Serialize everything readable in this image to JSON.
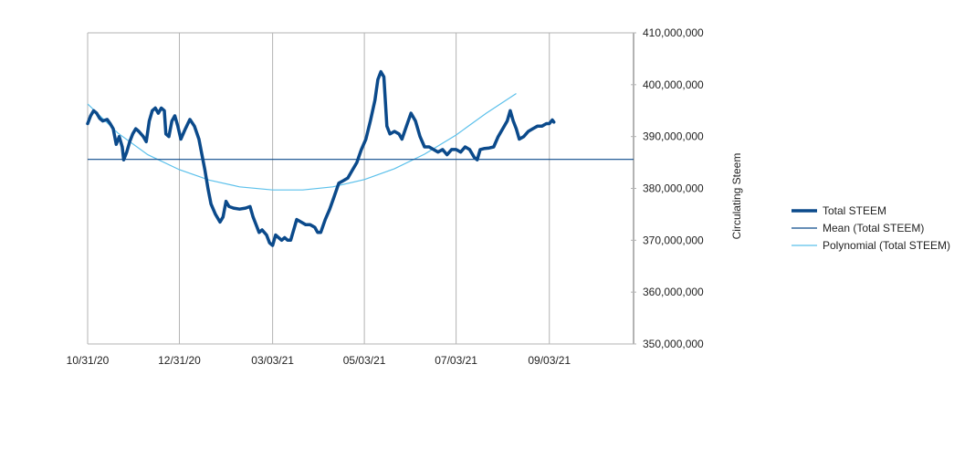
{
  "chart_data": {
    "type": "line",
    "title": "",
    "xlabel": "",
    "ylabel": "Circulating Steem",
    "ylim": [
      350000000,
      410000000
    ],
    "y_ticks": [
      350000000,
      360000000,
      370000000,
      380000000,
      390000000,
      400000000,
      410000000
    ],
    "y_tick_labels": [
      "350,000,000",
      "360,000,000",
      "370,000,000",
      "380,000,000",
      "390,000,000",
      "400,000,000",
      "410,000,000"
    ],
    "xlim": [
      "2020-10-31",
      "2021-10-29"
    ],
    "x_ticks": [
      "2020-10-31",
      "2020-12-31",
      "2021-03-03",
      "2021-05-03",
      "2021-07-03",
      "2021-09-03"
    ],
    "x_tick_labels": [
      "10/31/20",
      "12/31/20",
      "03/03/21",
      "05/03/21",
      "07/03/21",
      "09/03/21"
    ],
    "grid": "vertical",
    "legend_position": "right",
    "series": [
      {
        "name": "Total STEEM",
        "style": "thick-line",
        "color": "#0b4a8b",
        "points": [
          [
            "2020-10-31",
            392500000
          ],
          [
            "2020-11-02",
            394000000
          ],
          [
            "2020-11-04",
            395000000
          ],
          [
            "2020-11-06",
            394500000
          ],
          [
            "2020-11-08",
            393500000
          ],
          [
            "2020-11-10",
            393000000
          ],
          [
            "2020-11-13",
            393300000
          ],
          [
            "2020-11-15",
            392500000
          ],
          [
            "2020-11-17",
            391500000
          ],
          [
            "2020-11-19",
            388500000
          ],
          [
            "2020-11-21",
            390000000
          ],
          [
            "2020-11-23",
            388000000
          ],
          [
            "2020-11-24",
            385500000
          ],
          [
            "2020-11-26",
            387000000
          ],
          [
            "2020-11-28",
            389000000
          ],
          [
            "2020-11-30",
            390500000
          ],
          [
            "2020-12-02",
            391500000
          ],
          [
            "2020-12-04",
            391000000
          ],
          [
            "2020-12-07",
            390000000
          ],
          [
            "2020-12-09",
            389000000
          ],
          [
            "2020-12-11",
            393000000
          ],
          [
            "2020-12-13",
            395000000
          ],
          [
            "2020-12-15",
            395500000
          ],
          [
            "2020-12-17",
            394500000
          ],
          [
            "2020-12-19",
            395500000
          ],
          [
            "2020-12-21",
            395000000
          ],
          [
            "2020-12-22",
            390500000
          ],
          [
            "2020-12-24",
            390000000
          ],
          [
            "2020-12-26",
            393000000
          ],
          [
            "2020-12-28",
            394000000
          ],
          [
            "2020-12-30",
            392000000
          ],
          [
            "2021-01-01",
            389500000
          ],
          [
            "2021-01-04",
            391500000
          ],
          [
            "2021-01-07",
            393300000
          ],
          [
            "2021-01-10",
            392000000
          ],
          [
            "2021-01-13",
            389500000
          ],
          [
            "2021-01-15",
            386500000
          ],
          [
            "2021-01-17",
            383500000
          ],
          [
            "2021-01-19",
            380000000
          ],
          [
            "2021-01-21",
            377000000
          ],
          [
            "2021-01-24",
            375000000
          ],
          [
            "2021-01-27",
            373500000
          ],
          [
            "2021-01-29",
            374500000
          ],
          [
            "2021-01-31",
            377500000
          ],
          [
            "2021-02-02",
            376500000
          ],
          [
            "2021-02-05",
            376200000
          ],
          [
            "2021-02-09",
            376000000
          ],
          [
            "2021-02-13",
            376200000
          ],
          [
            "2021-02-16",
            376500000
          ],
          [
            "2021-02-18",
            374500000
          ],
          [
            "2021-02-20",
            373000000
          ],
          [
            "2021-02-22",
            371500000
          ],
          [
            "2021-02-24",
            372000000
          ],
          [
            "2021-02-27",
            371000000
          ],
          [
            "2021-03-01",
            369500000
          ],
          [
            "2021-03-03",
            369000000
          ],
          [
            "2021-03-05",
            371000000
          ],
          [
            "2021-03-07",
            370500000
          ],
          [
            "2021-03-09",
            370000000
          ],
          [
            "2021-03-11",
            370500000
          ],
          [
            "2021-03-13",
            370000000
          ],
          [
            "2021-03-15",
            370000000
          ],
          [
            "2021-03-17",
            372000000
          ],
          [
            "2021-03-19",
            374000000
          ],
          [
            "2021-03-22",
            373500000
          ],
          [
            "2021-03-25",
            373000000
          ],
          [
            "2021-03-28",
            373000000
          ],
          [
            "2021-03-31",
            372500000
          ],
          [
            "2021-04-02",
            371500000
          ],
          [
            "2021-04-04",
            371500000
          ],
          [
            "2021-04-07",
            374000000
          ],
          [
            "2021-04-10",
            376000000
          ],
          [
            "2021-04-13",
            378500000
          ],
          [
            "2021-04-16",
            381000000
          ],
          [
            "2021-04-19",
            381500000
          ],
          [
            "2021-04-22",
            382000000
          ],
          [
            "2021-04-25",
            383500000
          ],
          [
            "2021-04-28",
            385000000
          ],
          [
            "2021-05-01",
            387500000
          ],
          [
            "2021-05-04",
            389500000
          ],
          [
            "2021-05-07",
            393000000
          ],
          [
            "2021-05-10",
            397000000
          ],
          [
            "2021-05-12",
            401000000
          ],
          [
            "2021-05-14",
            402500000
          ],
          [
            "2021-05-16",
            401500000
          ],
          [
            "2021-05-18",
            392000000
          ],
          [
            "2021-05-20",
            390500000
          ],
          [
            "2021-05-23",
            391000000
          ],
          [
            "2021-05-26",
            390500000
          ],
          [
            "2021-05-28",
            389500000
          ],
          [
            "2021-05-31",
            392000000
          ],
          [
            "2021-06-03",
            394500000
          ],
          [
            "2021-06-06",
            393000000
          ],
          [
            "2021-06-09",
            390000000
          ],
          [
            "2021-06-12",
            388000000
          ],
          [
            "2021-06-15",
            388000000
          ],
          [
            "2021-06-18",
            387500000
          ],
          [
            "2021-06-21",
            387000000
          ],
          [
            "2021-06-24",
            387500000
          ],
          [
            "2021-06-27",
            386500000
          ],
          [
            "2021-06-30",
            387500000
          ],
          [
            "2021-07-03",
            387500000
          ],
          [
            "2021-07-06",
            387000000
          ],
          [
            "2021-07-09",
            388000000
          ],
          [
            "2021-07-12",
            387500000
          ],
          [
            "2021-07-15",
            386000000
          ],
          [
            "2021-07-17",
            385500000
          ],
          [
            "2021-07-19",
            387500000
          ],
          [
            "2021-07-22",
            387700000
          ],
          [
            "2021-07-25",
            387800000
          ],
          [
            "2021-07-28",
            388000000
          ],
          [
            "2021-07-31",
            390000000
          ],
          [
            "2021-08-03",
            391500000
          ],
          [
            "2021-08-06",
            393000000
          ],
          [
            "2021-08-08",
            395000000
          ],
          [
            "2021-08-10",
            393000000
          ],
          [
            "2021-08-12",
            391500000
          ],
          [
            "2021-08-14",
            389500000
          ],
          [
            "2021-08-17",
            390000000
          ],
          [
            "2021-08-20",
            391000000
          ],
          [
            "2021-08-23",
            391500000
          ],
          [
            "2021-08-26",
            392000000
          ],
          [
            "2021-08-29",
            392000000
          ],
          [
            "2021-09-01",
            392500000
          ],
          [
            "2021-09-03",
            392500000
          ],
          [
            "2021-09-05",
            393200000
          ],
          [
            "2021-09-06",
            392800000
          ]
        ]
      },
      {
        "name": "Mean (Total STEEM)",
        "style": "thin-line",
        "color": "#0b4a8b",
        "value": 385600000
      },
      {
        "name": "Polynomial (Total STEEM)",
        "style": "thin-line",
        "color": "#5bc0eb",
        "points": [
          [
            "2020-10-31",
            396300000
          ],
          [
            "2020-11-20",
            390700000
          ],
          [
            "2020-12-10",
            386500000
          ],
          [
            "2020-12-31",
            383600000
          ],
          [
            "2021-01-20",
            381600000
          ],
          [
            "2021-02-09",
            380300000
          ],
          [
            "2021-03-03",
            379700000
          ],
          [
            "2021-03-23",
            379700000
          ],
          [
            "2021-04-12",
            380300000
          ],
          [
            "2021-05-03",
            381700000
          ],
          [
            "2021-05-23",
            383800000
          ],
          [
            "2021-06-12",
            386600000
          ],
          [
            "2021-07-03",
            390300000
          ],
          [
            "2021-07-23",
            394500000
          ],
          [
            "2021-08-12",
            398300000
          ]
        ]
      }
    ]
  },
  "colors": {
    "primary": "#0b4a8b",
    "trend": "#5bc0eb",
    "grid": "#b3b3b3",
    "axis": "#b3b3b3"
  }
}
